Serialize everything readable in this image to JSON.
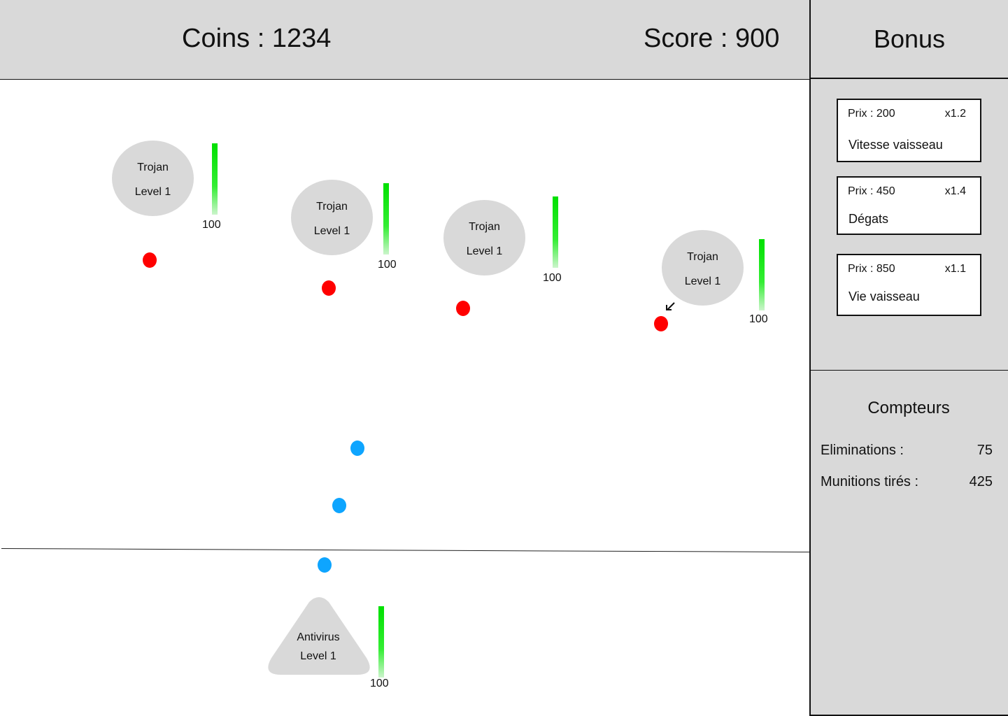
{
  "header": {
    "coins": "Coins : 1234",
    "score": "Score : 900"
  },
  "enemies": [
    {
      "name": "Trojan",
      "level": "Level 1",
      "hp": "100"
    },
    {
      "name": "Trojan",
      "level": "Level 1",
      "hp": "100"
    },
    {
      "name": "Trojan",
      "level": "Level 1",
      "hp": "100"
    },
    {
      "name": "Trojan",
      "level": "Level 1",
      "hp": "100"
    }
  ],
  "player": {
    "name": "Antivirus",
    "level": "Level 1",
    "hp": "100"
  },
  "panel": {
    "title": "Bonus",
    "bonuses": [
      {
        "price": "Prix : 200",
        "multiplier": "x1.2",
        "name": "Vitesse vaisseau"
      },
      {
        "price": "Prix : 450",
        "multiplier": "x1.4",
        "name": "Dégats"
      },
      {
        "price": "Prix : 850",
        "multiplier": "x1.1",
        "name": "Vie vaisseau"
      }
    ],
    "counters_title": "Compteurs",
    "counters": [
      {
        "label": "Eliminations :",
        "value": "75"
      },
      {
        "label": "Munitions tirés :",
        "value": "425"
      }
    ]
  },
  "colors": {
    "enemy_bullet": "#ff0000",
    "player_bullet": "#0ea5ff",
    "health_bar": "#00e000",
    "panel_bg": "#d9d9d9"
  },
  "icons": [
    "cursor-arrow-icon"
  ]
}
